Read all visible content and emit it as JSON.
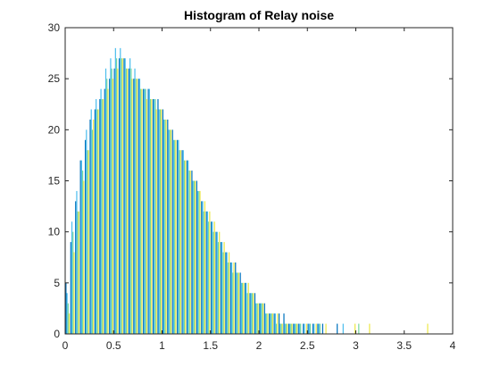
{
  "chart_data": {
    "type": "bar",
    "title": "Histogram of Relay noise",
    "xlabel": "",
    "ylabel": "",
    "xlim": [
      0,
      4
    ],
    "ylim": [
      0,
      30
    ],
    "xticks": [
      0,
      0.5,
      1,
      1.5,
      2,
      2.5,
      3,
      3.5,
      4
    ],
    "xtick_labels": [
      "0",
      "0.5",
      "1",
      "1.5",
      "2",
      "2.5",
      "3",
      "3.5",
      "4"
    ],
    "yticks": [
      0,
      5,
      10,
      15,
      20,
      25,
      30
    ],
    "ytick_labels": [
      "0",
      "5",
      "10",
      "15",
      "20",
      "25",
      "30"
    ],
    "grid": false,
    "bin_centers": [
      0.025,
      0.075,
      0.125,
      0.175,
      0.225,
      0.275,
      0.325,
      0.375,
      0.425,
      0.475,
      0.525,
      0.575,
      0.625,
      0.675,
      0.725,
      0.775,
      0.825,
      0.875,
      0.925,
      0.975,
      1.025,
      1.075,
      1.125,
      1.175,
      1.225,
      1.275,
      1.325,
      1.375,
      1.425,
      1.475,
      1.525,
      1.575,
      1.625,
      1.675,
      1.725,
      1.775,
      1.825,
      1.875,
      1.925,
      1.975,
      2.025,
      2.075,
      2.125,
      2.175,
      2.225,
      2.275,
      2.325,
      2.375,
      2.425,
      2.475,
      2.525,
      2.575,
      2.625,
      2.675,
      2.725,
      2.775,
      2.825,
      2.875,
      2.925,
      2.975,
      3.025,
      3.075,
      3.125,
      3.175,
      3.225,
      3.275,
      3.325,
      3.375,
      3.425,
      3.475,
      3.525,
      3.575,
      3.625,
      3.675,
      3.725
    ],
    "series": [
      {
        "color": "#0072BD",
        "values": [
          5,
          9,
          13,
          17,
          19,
          21,
          22,
          23,
          24,
          25,
          26,
          27,
          27,
          26,
          25,
          25,
          24,
          24,
          23,
          23,
          22,
          21,
          20,
          19,
          18,
          17,
          16,
          15,
          13,
          12,
          11,
          10,
          9,
          8,
          7,
          7,
          6,
          5,
          4,
          4,
          3,
          3,
          2,
          2,
          2,
          2,
          1,
          1,
          1,
          1,
          1,
          1,
          1,
          1,
          0,
          0,
          1,
          0,
          0,
          0,
          0,
          0,
          0,
          0,
          0,
          0,
          0,
          0,
          0,
          0,
          0,
          0,
          0,
          0,
          0
        ]
      },
      {
        "color": "#4DBEEE",
        "values": [
          4,
          11,
          14,
          17,
          20,
          22,
          23,
          24,
          26,
          27,
          28,
          28,
          27,
          27,
          26,
          25,
          24,
          24,
          23,
          22,
          21,
          20,
          19,
          19,
          18,
          17,
          15,
          14,
          13,
          12,
          11,
          10,
          9,
          8,
          7,
          6,
          5,
          5,
          4,
          3,
          3,
          2,
          2,
          2,
          1,
          1,
          1,
          1,
          1,
          1,
          1,
          1,
          1,
          0,
          0,
          0,
          0,
          1,
          0,
          0,
          0,
          0,
          0,
          0,
          0,
          0,
          0,
          0,
          0,
          0,
          0,
          0,
          0,
          0,
          0
        ]
      },
      {
        "color": "#77D7A0",
        "values": [
          3,
          10,
          12,
          16,
          18,
          20,
          22,
          23,
          25,
          26,
          27,
          27,
          26,
          26,
          25,
          24,
          24,
          23,
          23,
          22,
          21,
          20,
          19,
          18,
          17,
          16,
          15,
          14,
          12,
          11,
          10,
          9,
          8,
          7,
          6,
          6,
          5,
          4,
          4,
          3,
          3,
          2,
          2,
          1,
          1,
          1,
          1,
          1,
          1,
          0,
          1,
          0,
          1,
          0,
          0,
          0,
          0,
          0,
          0,
          0,
          1,
          0,
          0,
          0,
          0,
          0,
          0,
          0,
          0,
          0,
          0,
          0,
          0,
          0,
          0
        ]
      },
      {
        "color": "#EDE84A",
        "values": [
          2,
          8,
          12,
          15,
          18,
          21,
          22,
          23,
          24,
          25,
          26,
          27,
          26,
          25,
          25,
          24,
          23,
          23,
          22,
          22,
          21,
          20,
          19,
          18,
          17,
          16,
          15,
          14,
          13,
          12,
          11,
          10,
          9,
          8,
          7,
          6,
          5,
          5,
          4,
          3,
          3,
          2,
          2,
          2,
          1,
          1,
          1,
          1,
          0,
          1,
          0,
          1,
          0,
          1,
          0,
          0,
          0,
          0,
          0,
          1,
          0,
          0,
          1,
          0,
          0,
          0,
          0,
          0,
          0,
          0,
          0,
          0,
          0,
          0,
          1
        ]
      }
    ]
  }
}
